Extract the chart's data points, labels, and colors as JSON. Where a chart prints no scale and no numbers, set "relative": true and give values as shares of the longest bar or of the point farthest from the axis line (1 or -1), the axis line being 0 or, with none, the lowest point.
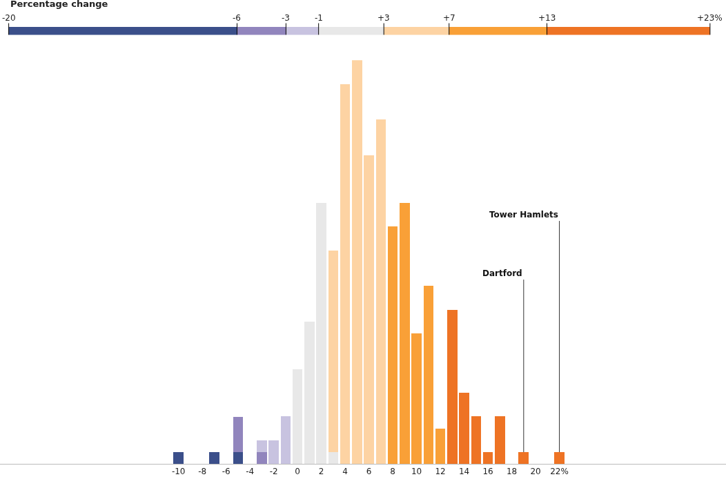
{
  "chart_data": {
    "type": "bar",
    "stacked": true,
    "relative": true,
    "x": [
      -10,
      -7,
      -5,
      -3,
      -2,
      -1,
      0,
      1,
      2,
      3,
      4,
      5,
      6,
      7,
      8,
      9,
      10,
      11,
      12,
      13,
      14,
      15,
      16,
      17,
      19,
      22
    ],
    "series": [
      {
        "color": "#3b4f8a",
        "values": [
          0.029,
          0.029,
          0.029,
          null,
          null,
          null,
          null,
          null,
          null,
          null,
          null,
          null,
          null,
          null,
          null,
          null,
          null,
          null,
          null,
          null,
          null,
          null,
          null,
          null,
          null,
          null
        ]
      },
      {
        "color": "#9185bd",
        "values": [
          null,
          null,
          0.088,
          0.029,
          null,
          null,
          null,
          null,
          null,
          null,
          null,
          null,
          null,
          null,
          null,
          null,
          null,
          null,
          null,
          null,
          null,
          null,
          null,
          null,
          null,
          null
        ]
      },
      {
        "color": "#c8c3e0",
        "values": [
          null,
          null,
          null,
          0.029,
          0.059,
          0.118,
          null,
          null,
          null,
          null,
          null,
          null,
          null,
          null,
          null,
          null,
          null,
          null,
          null,
          null,
          null,
          null,
          null,
          null,
          null,
          null
        ]
      },
      {
        "color": "#e8e8e8",
        "values": [
          null,
          null,
          null,
          null,
          null,
          null,
          0.235,
          0.353,
          0.647,
          0.029,
          null,
          null,
          null,
          null,
          null,
          null,
          null,
          null,
          null,
          null,
          null,
          null,
          null,
          null,
          null,
          null
        ]
      },
      {
        "color": "#fdd3a3",
        "values": [
          null,
          null,
          null,
          null,
          null,
          null,
          null,
          null,
          null,
          0.5,
          0.941,
          1,
          0.765,
          0.853,
          null,
          null,
          null,
          null,
          null,
          null,
          null,
          null,
          null,
          null,
          null,
          null
        ]
      },
      {
        "color": "#f9a037",
        "values": [
          null,
          null,
          null,
          null,
          null,
          null,
          null,
          null,
          null,
          null,
          null,
          null,
          null,
          null,
          0.588,
          0.647,
          0.324,
          0.441,
          0.088,
          null,
          null,
          null,
          null,
          null,
          null,
          null
        ]
      },
      {
        "color": "#ee7324",
        "values": [
          null,
          null,
          null,
          null,
          null,
          null,
          null,
          null,
          null,
          null,
          null,
          null,
          null,
          null,
          null,
          null,
          null,
          null,
          null,
          0.382,
          0.176,
          0.118,
          0.029,
          0.118,
          0.029,
          0.029
        ]
      }
    ],
    "xlim": [
      -25,
      36
    ],
    "xticks": [
      -10,
      -8,
      -6,
      -4,
      -2,
      0,
      2,
      4,
      6,
      8,
      10,
      12,
      14,
      16,
      18,
      20,
      {
        "value": 22,
        "label": "22%"
      }
    ],
    "clabel": "Percentage change",
    "cticks": [
      {
        "value": -20,
        "label": "-20"
      },
      {
        "value": -6,
        "label": "-6"
      },
      {
        "value": -3,
        "label": "-3"
      },
      {
        "value": -1,
        "label": "-1"
      },
      {
        "value": 3,
        "label": "+3"
      },
      {
        "value": 7,
        "label": "+7"
      },
      {
        "value": 13,
        "label": "+13"
      },
      {
        "value": 23,
        "label": "+23%"
      }
    ],
    "annotations": [
      {
        "text": "Dartford",
        "x": 19,
        "y": 0.029
      },
      {
        "text": "Tower Hamlets",
        "x": 22,
        "y": 0.029
      }
    ]
  }
}
